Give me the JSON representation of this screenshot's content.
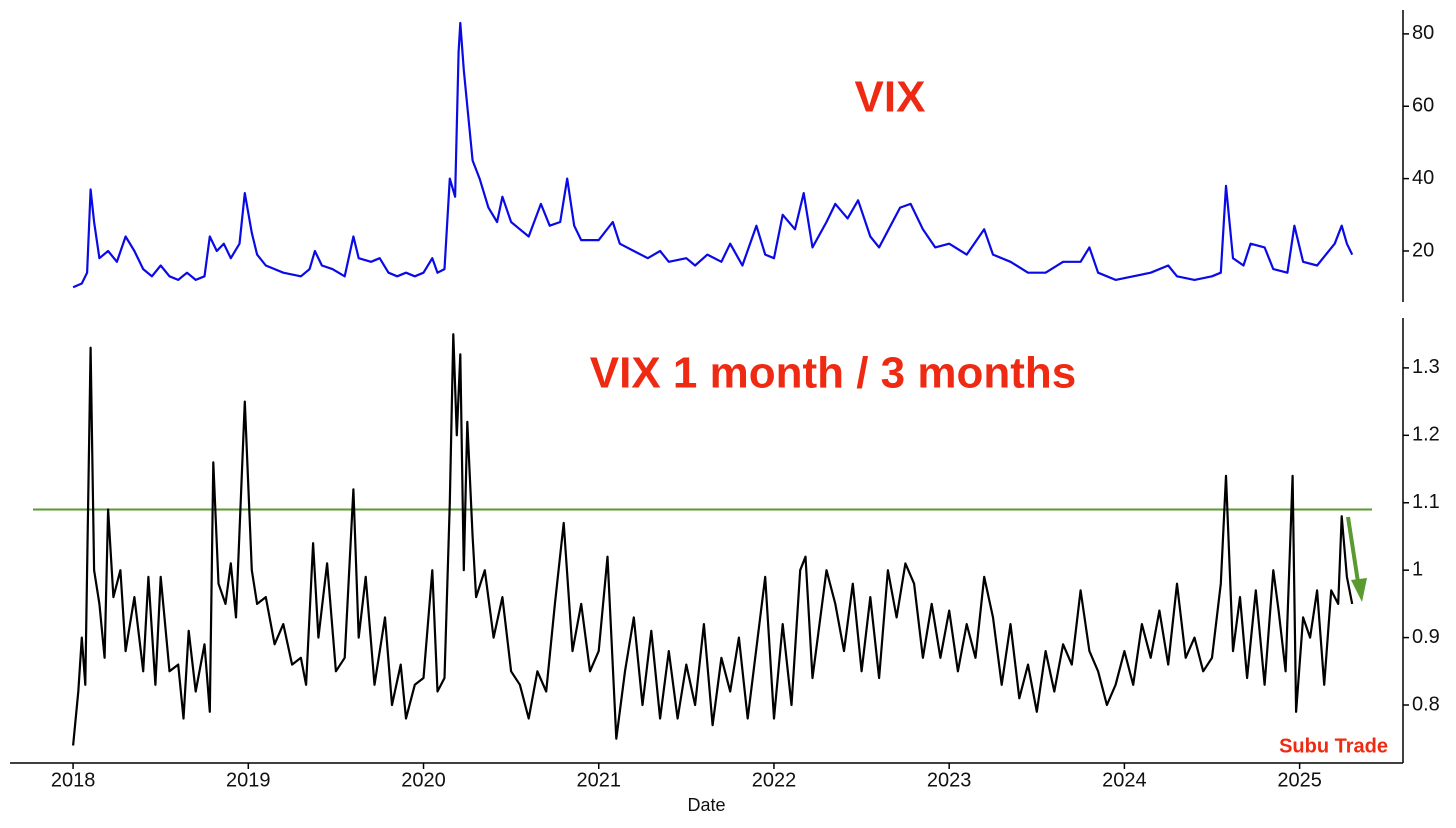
{
  "chart_data": [
    {
      "type": "line",
      "title": "VIX",
      "title_color": "#ee2a12",
      "xlim": [
        2017.64,
        2025.59
      ],
      "ylim": [
        5.9,
        86.6
      ],
      "yticks": [
        20,
        40,
        60,
        80
      ],
      "series": [
        {
          "name": "VIX",
          "color": "#0a0ae6",
          "x": [
            2018.0,
            2018.05,
            2018.08,
            2018.1,
            2018.12,
            2018.15,
            2018.2,
            2018.25,
            2018.3,
            2018.35,
            2018.4,
            2018.45,
            2018.5,
            2018.55,
            2018.6,
            2018.65,
            2018.7,
            2018.75,
            2018.78,
            2018.82,
            2018.86,
            2018.9,
            2018.95,
            2018.98,
            2019.02,
            2019.05,
            2019.1,
            2019.15,
            2019.2,
            2019.3,
            2019.35,
            2019.38,
            2019.42,
            2019.48,
            2019.55,
            2019.6,
            2019.63,
            2019.7,
            2019.75,
            2019.8,
            2019.85,
            2019.9,
            2019.95,
            2020.0,
            2020.05,
            2020.08,
            2020.12,
            2020.15,
            2020.18,
            2020.2,
            2020.21,
            2020.23,
            2020.25,
            2020.28,
            2020.32,
            2020.37,
            2020.42,
            2020.45,
            2020.5,
            2020.55,
            2020.6,
            2020.67,
            2020.72,
            2020.78,
            2020.82,
            2020.86,
            2020.9,
            2021.0,
            2021.08,
            2021.12,
            2021.2,
            2021.28,
            2021.35,
            2021.4,
            2021.5,
            2021.55,
            2021.62,
            2021.7,
            2021.75,
            2021.82,
            2021.9,
            2021.95,
            2022.0,
            2022.05,
            2022.12,
            2022.17,
            2022.22,
            2022.3,
            2022.35,
            2022.42,
            2022.48,
            2022.55,
            2022.6,
            2022.72,
            2022.78,
            2022.85,
            2022.92,
            2023.0,
            2023.1,
            2023.2,
            2023.25,
            2023.35,
            2023.45,
            2023.55,
            2023.65,
            2023.75,
            2023.8,
            2023.85,
            2023.95,
            2024.05,
            2024.15,
            2024.25,
            2024.3,
            2024.4,
            2024.5,
            2024.55,
            2024.58,
            2024.62,
            2024.68,
            2024.72,
            2024.8,
            2024.85,
            2024.93,
            2024.97,
            2025.02,
            2025.1,
            2025.15,
            2025.2,
            2025.24,
            2025.27,
            2025.3
          ],
          "values": [
            10,
            11,
            14,
            37,
            28,
            18,
            20,
            17,
            24,
            20,
            15,
            13,
            16,
            13,
            12,
            14,
            12,
            13,
            24,
            20,
            22,
            18,
            22,
            36,
            25,
            19,
            16,
            15,
            14,
            13,
            15,
            20,
            16,
            15,
            13,
            24,
            18,
            17,
            18,
            14,
            13,
            14,
            13,
            14,
            18,
            14,
            15,
            40,
            35,
            75,
            83,
            70,
            60,
            45,
            40,
            32,
            28,
            35,
            28,
            26,
            24,
            33,
            27,
            28,
            40,
            27,
            23,
            23,
            28,
            22,
            20,
            18,
            20,
            17,
            18,
            16,
            19,
            17,
            22,
            16,
            27,
            19,
            18,
            30,
            26,
            36,
            21,
            28,
            33,
            29,
            34,
            24,
            21,
            32,
            33,
            26,
            21,
            22,
            19,
            26,
            19,
            17,
            14,
            14,
            17,
            17,
            21,
            14,
            12,
            13,
            14,
            16,
            13,
            12,
            13,
            14,
            38,
            18,
            16,
            22,
            21,
            15,
            14,
            27,
            17,
            16,
            19,
            22,
            27,
            22,
            19
          ]
        }
      ]
    },
    {
      "type": "line",
      "title": "VIX 1 month / 3 months",
      "title_color": "#ee2a12",
      "annotation": "Subu Trade",
      "xlabel": "Date",
      "xlim": [
        2017.64,
        2025.59
      ],
      "xticks": [
        2018,
        2019,
        2020,
        2021,
        2022,
        2023,
        2024,
        2025
      ],
      "ylim": [
        0.714,
        1.374
      ],
      "yticks": [
        0.8,
        0.9,
        1.0,
        1.1,
        1.2,
        1.3
      ],
      "hline": 1.09,
      "hline_color": "#5a9a2e",
      "series": [
        {
          "name": "VIX 1 month / 3 months",
          "color": "#000000",
          "x": [
            2018.0,
            2018.03,
            2018.05,
            2018.07,
            2018.1,
            2018.12,
            2018.15,
            2018.18,
            2018.2,
            2018.23,
            2018.27,
            2018.3,
            2018.35,
            2018.4,
            2018.43,
            2018.47,
            2018.5,
            2018.55,
            2018.6,
            2018.63,
            2018.66,
            2018.7,
            2018.75,
            2018.78,
            2018.8,
            2018.83,
            2018.87,
            2018.9,
            2018.93,
            2018.98,
            2019.02,
            2019.05,
            2019.1,
            2019.15,
            2019.2,
            2019.25,
            2019.3,
            2019.33,
            2019.37,
            2019.4,
            2019.45,
            2019.5,
            2019.55,
            2019.6,
            2019.63,
            2019.67,
            2019.72,
            2019.78,
            2019.82,
            2019.87,
            2019.9,
            2019.95,
            2020.0,
            2020.05,
            2020.08,
            2020.12,
            2020.15,
            2020.17,
            2020.19,
            2020.21,
            2020.23,
            2020.25,
            2020.28,
            2020.3,
            2020.35,
            2020.4,
            2020.45,
            2020.5,
            2020.55,
            2020.6,
            2020.65,
            2020.7,
            2020.75,
            2020.8,
            2020.85,
            2020.9,
            2020.95,
            2021.0,
            2021.05,
            2021.1,
            2021.15,
            2021.2,
            2021.25,
            2021.3,
            2021.35,
            2021.4,
            2021.45,
            2021.5,
            2021.55,
            2021.6,
            2021.65,
            2021.7,
            2021.75,
            2021.8,
            2021.85,
            2021.95,
            2022.0,
            2022.05,
            2022.1,
            2022.15,
            2022.18,
            2022.22,
            2022.3,
            2022.35,
            2022.4,
            2022.45,
            2022.5,
            2022.55,
            2022.6,
            2022.65,
            2022.7,
            2022.75,
            2022.8,
            2022.85,
            2022.9,
            2022.95,
            2023.0,
            2023.05,
            2023.1,
            2023.15,
            2023.2,
            2023.25,
            2023.3,
            2023.35,
            2023.4,
            2023.45,
            2023.5,
            2023.55,
            2023.6,
            2023.65,
            2023.7,
            2023.75,
            2023.8,
            2023.85,
            2023.9,
            2023.95,
            2024.0,
            2024.05,
            2024.1,
            2024.15,
            2024.2,
            2024.25,
            2024.3,
            2024.35,
            2024.4,
            2024.45,
            2024.5,
            2024.55,
            2024.58,
            2024.62,
            2024.66,
            2024.7,
            2024.75,
            2024.8,
            2024.85,
            2024.88,
            2024.92,
            2024.96,
            2024.98,
            2025.02,
            2025.06,
            2025.1,
            2025.14,
            2025.18,
            2025.22,
            2025.24,
            2025.27,
            2025.3
          ],
          "values": [
            0.74,
            0.82,
            0.9,
            0.83,
            1.33,
            1.0,
            0.95,
            0.87,
            1.09,
            0.96,
            1.0,
            0.88,
            0.96,
            0.85,
            0.99,
            0.83,
            0.99,
            0.85,
            0.86,
            0.78,
            0.91,
            0.82,
            0.89,
            0.79,
            1.16,
            0.98,
            0.95,
            1.01,
            0.93,
            1.25,
            1.0,
            0.95,
            0.96,
            0.89,
            0.92,
            0.86,
            0.87,
            0.83,
            1.04,
            0.9,
            1.01,
            0.85,
            0.87,
            1.12,
            0.9,
            0.99,
            0.83,
            0.93,
            0.8,
            0.86,
            0.78,
            0.83,
            0.84,
            1.0,
            0.82,
            0.84,
            1.1,
            1.35,
            1.2,
            1.32,
            1.0,
            1.22,
            1.05,
            0.96,
            1.0,
            0.9,
            0.96,
            0.85,
            0.83,
            0.78,
            0.85,
            0.82,
            0.95,
            1.07,
            0.88,
            0.95,
            0.85,
            0.88,
            1.02,
            0.75,
            0.85,
            0.93,
            0.8,
            0.91,
            0.78,
            0.88,
            0.78,
            0.86,
            0.8,
            0.92,
            0.77,
            0.87,
            0.82,
            0.9,
            0.78,
            0.99,
            0.78,
            0.92,
            0.8,
            1.0,
            1.02,
            0.84,
            1.0,
            0.95,
            0.88,
            0.98,
            0.85,
            0.96,
            0.84,
            1.0,
            0.93,
            1.01,
            0.98,
            0.87,
            0.95,
            0.87,
            0.94,
            0.85,
            0.92,
            0.87,
            0.99,
            0.93,
            0.83,
            0.92,
            0.81,
            0.86,
            0.79,
            0.88,
            0.82,
            0.89,
            0.86,
            0.97,
            0.88,
            0.85,
            0.8,
            0.83,
            0.88,
            0.83,
            0.92,
            0.87,
            0.94,
            0.86,
            0.98,
            0.87,
            0.9,
            0.85,
            0.87,
            0.98,
            1.14,
            0.88,
            0.96,
            0.84,
            0.97,
            0.83,
            1.0,
            0.94,
            0.85,
            1.14,
            0.79,
            0.93,
            0.9,
            0.97,
            0.83,
            0.97,
            0.95,
            1.08,
            0.99,
            0.95
          ]
        }
      ]
    }
  ]
}
